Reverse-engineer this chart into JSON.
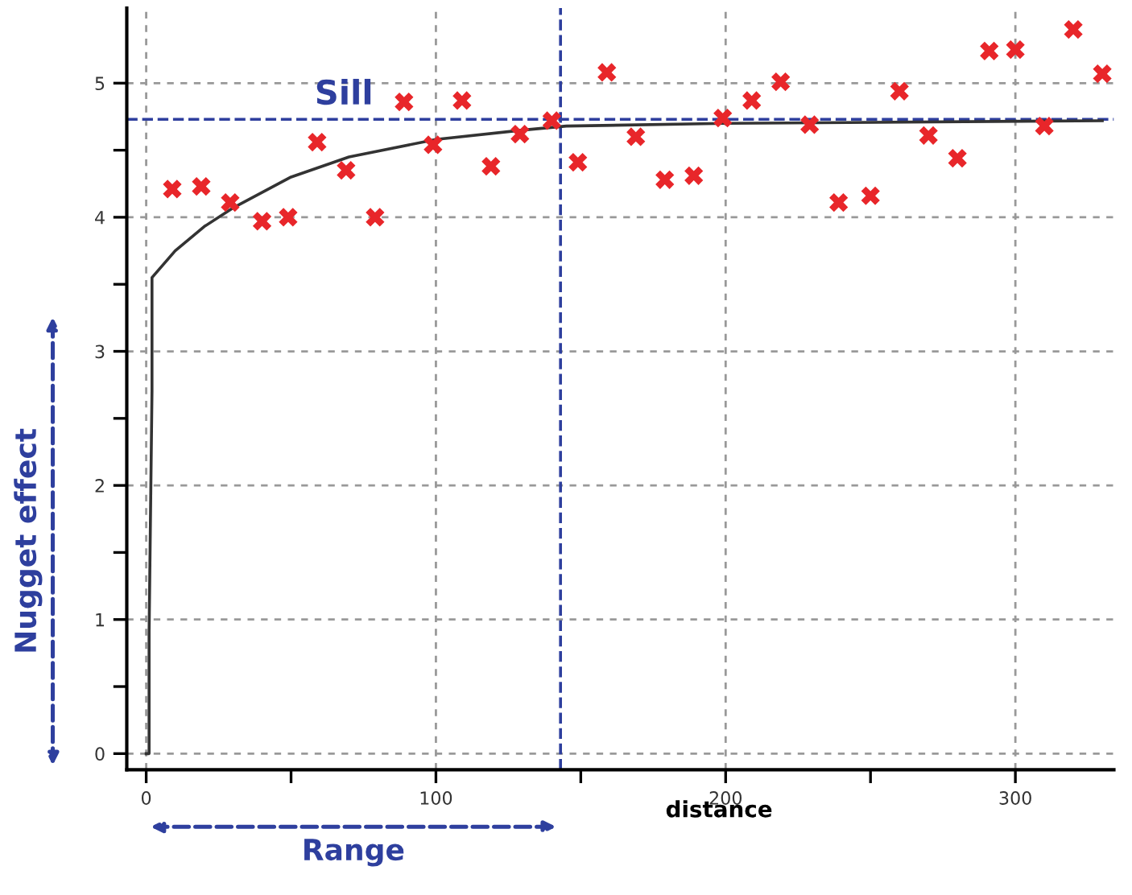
{
  "chart_data": {
    "type": "scatter",
    "xlabel": "distance",
    "series": [
      {
        "color": "#e8262a",
        "marker": "cross",
        "x": [
          9,
          19,
          29,
          40,
          49,
          59,
          69,
          79,
          89,
          99,
          109,
          119,
          129,
          140,
          149,
          159,
          169,
          179,
          189,
          199,
          209,
          219,
          229,
          239,
          250,
          260,
          270,
          280,
          291,
          300,
          310,
          320,
          330
        ],
        "values": [
          4.21,
          4.23,
          4.11,
          3.97,
          4.0,
          4.56,
          4.35,
          4.0,
          4.86,
          4.54,
          4.87,
          4.38,
          4.62,
          4.72,
          4.41,
          5.08,
          4.6,
          4.28,
          4.31,
          4.74,
          4.87,
          5.01,
          4.69,
          4.11,
          4.16,
          4.94,
          4.61,
          4.44,
          5.24,
          5.25,
          4.68,
          5.4,
          5.07
        ]
      },
      {
        "type": "line",
        "color": "#333333",
        "marker": "none",
        "line_style": "solid",
        "x": [
          0,
          1,
          1,
          2,
          2,
          10,
          20,
          30,
          50,
          70,
          100,
          130,
          145,
          200,
          330
        ],
        "values": [
          0,
          0,
          0.9,
          2.7,
          3.55,
          3.75,
          3.93,
          4.07,
          4.3,
          4.45,
          4.58,
          4.65,
          4.68,
          4.7,
          4.72
        ]
      }
    ],
    "ref_lines": [
      {
        "axis": "y",
        "value": 4.73,
        "label": "Sill",
        "color": "#2e3f9e",
        "line_style": "dashed"
      },
      {
        "axis": "x",
        "value": 143,
        "label": "Range",
        "color": "#2e3f9e",
        "line_style": "dashed"
      }
    ],
    "annotations": [
      "Nugget effect"
    ],
    "xlim": [
      -6.7,
      334
    ],
    "ylim": [
      -0.12,
      5.56
    ],
    "xticks": [
      0,
      {
        "value": 50,
        "label": null
      },
      100,
      {
        "value": 150,
        "label": null
      },
      200,
      {
        "value": 250,
        "label": null
      },
      300
    ],
    "yticks": [
      0,
      {
        "value": 0.5,
        "label": null
      },
      1,
      {
        "value": 1.5,
        "label": null
      },
      2,
      {
        "value": 2.5,
        "label": null
      },
      3,
      {
        "value": 3.5,
        "label": null
      },
      4,
      {
        "value": 4.5,
        "label": null
      },
      5
    ],
    "grid": true,
    "legend": false
  }
}
